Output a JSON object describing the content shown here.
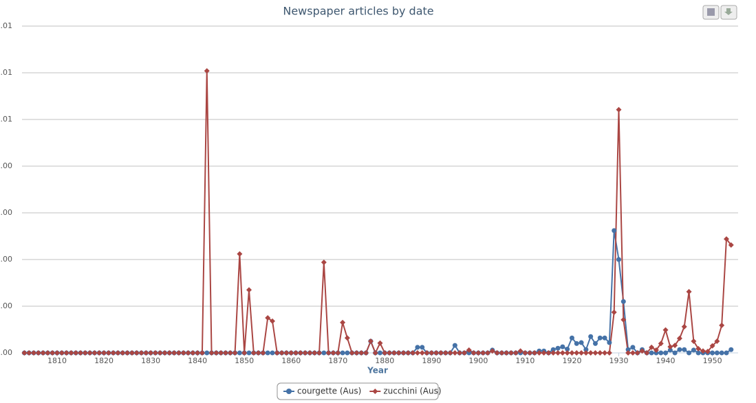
{
  "chart_data": {
    "type": "line",
    "title": "Newspaper articles by date",
    "x_label": "Year",
    "x": [
      1803,
      1804,
      1805,
      1806,
      1807,
      1808,
      1809,
      1810,
      1811,
      1812,
      1813,
      1814,
      1815,
      1816,
      1817,
      1818,
      1819,
      1820,
      1821,
      1822,
      1823,
      1824,
      1825,
      1826,
      1827,
      1828,
      1829,
      1830,
      1831,
      1832,
      1833,
      1834,
      1835,
      1836,
      1837,
      1838,
      1839,
      1840,
      1841,
      1842,
      1843,
      1844,
      1845,
      1846,
      1847,
      1848,
      1849,
      1850,
      1851,
      1852,
      1853,
      1854,
      1855,
      1856,
      1857,
      1858,
      1859,
      1860,
      1861,
      1862,
      1863,
      1864,
      1865,
      1866,
      1867,
      1868,
      1869,
      1870,
      1871,
      1872,
      1873,
      1874,
      1875,
      1876,
      1877,
      1878,
      1879,
      1880,
      1881,
      1882,
      1883,
      1884,
      1885,
      1886,
      1887,
      1888,
      1889,
      1890,
      1891,
      1892,
      1893,
      1894,
      1895,
      1896,
      1897,
      1898,
      1899,
      1900,
      1901,
      1902,
      1903,
      1904,
      1905,
      1906,
      1907,
      1908,
      1909,
      1910,
      1911,
      1912,
      1913,
      1914,
      1915,
      1916,
      1917,
      1918,
      1919,
      1920,
      1921,
      1922,
      1923,
      1924,
      1925,
      1926,
      1927,
      1928,
      1929,
      1930,
      1931,
      1932,
      1933,
      1934,
      1935,
      1936,
      1937,
      1938,
      1939,
      1940,
      1941,
      1942,
      1943,
      1944,
      1945,
      1946,
      1947,
      1948,
      1949,
      1950,
      1951,
      1952,
      1953,
      1954
    ],
    "series": [
      {
        "name": "courgette (Aus)",
        "color": "#4572A7",
        "marker": "circle",
        "values": [
          0,
          0,
          0,
          0,
          0,
          0,
          0,
          0,
          0,
          0,
          0,
          0,
          0,
          0,
          0,
          0,
          0,
          0,
          0,
          0,
          0,
          0,
          0,
          0,
          0,
          0,
          0,
          0,
          0,
          0,
          0,
          0,
          0,
          0,
          0,
          0,
          0,
          0,
          0,
          0,
          0,
          0,
          0,
          0,
          0,
          0,
          0,
          0,
          0,
          0,
          0,
          0,
          0,
          0,
          0,
          0,
          0,
          0,
          0,
          0,
          0,
          0,
          0,
          0,
          0,
          0,
          0,
          0,
          0,
          0,
          0,
          0,
          0,
          0,
          0.00025,
          0,
          0,
          0,
          0,
          0,
          0,
          0,
          0,
          0,
          0.00012,
          0.00012,
          0,
          0,
          0,
          0,
          0,
          0,
          0.00016,
          0,
          0,
          0,
          0,
          0,
          0,
          0,
          6e-05,
          0,
          0,
          0,
          0,
          0,
          0,
          0,
          0,
          0,
          4e-05,
          4e-05,
          0,
          7e-05,
          0.0001,
          0.00013,
          8e-05,
          0.00032,
          0.0002,
          0.00022,
          7e-05,
          0.00035,
          0.0002,
          0.00032,
          0.00032,
          0.00022,
          0.00262,
          0.002,
          0.0011,
          7e-05,
          0.00012,
          0,
          7e-05,
          0,
          0,
          0,
          0,
          0,
          6e-05,
          0,
          7e-05,
          7e-05,
          0,
          6e-05,
          0,
          0,
          0,
          0,
          0,
          0,
          0,
          7e-05
        ]
      },
      {
        "name": "zucchini (Aus)",
        "color": "#AA4643",
        "marker": "diamond",
        "values": [
          0,
          0,
          0,
          0,
          0,
          0,
          0,
          0,
          0,
          0,
          0,
          0,
          0,
          0,
          0,
          0,
          0,
          0,
          0,
          0,
          0,
          0,
          0,
          0,
          0,
          0,
          0,
          0,
          0,
          0,
          0,
          0,
          0,
          0,
          0,
          0,
          0,
          0,
          0,
          0.00604,
          0,
          0,
          0,
          0,
          0,
          0,
          0.00212,
          0,
          0.00135,
          0,
          0,
          0,
          0.00075,
          0.00068,
          0,
          0,
          0,
          0,
          0,
          0,
          0,
          0,
          0,
          0,
          0.00194,
          0,
          0,
          0,
          0.00065,
          0.00032,
          0,
          0,
          0,
          0,
          0.00025,
          0,
          0.00021,
          0,
          0,
          0,
          0,
          0,
          0,
          0,
          0,
          0,
          0,
          0,
          0,
          0,
          0,
          0,
          0,
          0,
          0,
          6e-05,
          0,
          0,
          0,
          0,
          4e-05,
          0,
          0,
          0,
          0,
          0,
          4e-05,
          0,
          0,
          0,
          0,
          0,
          0,
          0,
          0,
          0,
          0,
          0,
          0,
          0,
          0,
          0,
          0,
          0,
          0,
          0,
          0.00087,
          0.00521,
          0.00071,
          0,
          0,
          0,
          4e-05,
          0,
          0.00012,
          6e-05,
          0.0002,
          0.00049,
          0.00013,
          0.00016,
          0.00031,
          0.00056,
          0.00131,
          0.00025,
          9e-05,
          4e-05,
          3e-05,
          0.00015,
          0.00025,
          0.00059,
          0.00244,
          0.00231
        ]
      }
    ],
    "xlim": [
      1802.5,
      1955.5
    ],
    "xticks": [
      1810,
      1820,
      1830,
      1840,
      1850,
      1860,
      1870,
      1880,
      1890,
      1900,
      1910,
      1920,
      1930,
      1940,
      1950
    ],
    "ylim": [
      0,
      0.007
    ],
    "yticks": [
      {
        "value": 0,
        "label": ".00"
      },
      {
        "value": 0.001,
        "label": ".00"
      },
      {
        "value": 0.002,
        "label": ".00"
      },
      {
        "value": 0.003,
        "label": ".00"
      },
      {
        "value": 0.004,
        "label": ".00"
      },
      {
        "value": 0.005,
        "label": ".01"
      },
      {
        "value": 0.006,
        "label": ".01"
      },
      {
        "value": 0.007,
        "label": ".01"
      }
    ],
    "grid": true,
    "legend": "bottom"
  }
}
